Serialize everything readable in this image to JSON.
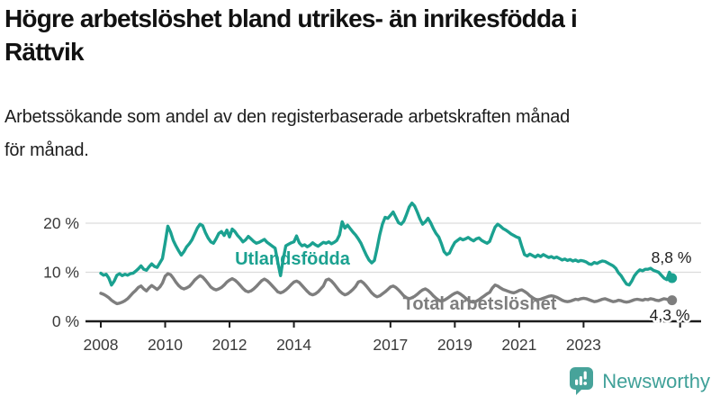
{
  "header": {
    "title_lines": [
      "Högre arbetslöshet bland utrikes- än inrikesfödda i",
      "Rättvik"
    ],
    "subtitle_lines": [
      "Arbetssökande som andel av den registerbaserade arbetskraften månad",
      "för månad."
    ]
  },
  "chart_data": {
    "type": "line",
    "unit": "%",
    "x_start_year": 2008,
    "points_per_year": 12,
    "ylim": [
      0,
      24.5
    ],
    "grid": "horizontal",
    "axis_color": "#1c1c1c",
    "gridline_color": "#dcdcdc",
    "yticks": [
      {
        "value": 0,
        "label": "0 %"
      },
      {
        "value": 10,
        "label": "10 %"
      },
      {
        "value": 20,
        "label": "20 %"
      }
    ],
    "xticks": [
      {
        "value": 2008,
        "label": "2008"
      },
      {
        "value": 2010,
        "label": "2010"
      },
      {
        "value": 2012,
        "label": "2012"
      },
      {
        "value": 2014,
        "label": "2014"
      },
      {
        "value": 2017,
        "label": "2017"
      },
      {
        "value": 2019,
        "label": "2019"
      },
      {
        "value": 2021,
        "label": "2021"
      },
      {
        "value": 2023,
        "label": "2023"
      },
      {
        "value": 2026,
        "label": ""
      }
    ],
    "series": [
      {
        "name": "Utlandsfödda",
        "color": "#1ba190",
        "end_label": "8,8 %",
        "end_value": 8.8,
        "values": [
          9.8,
          9.4,
          9.6,
          8.8,
          7.4,
          8.2,
          9.4,
          9.7,
          9.3,
          9.6,
          9.4,
          9.7,
          9.8,
          10.2,
          10.7,
          11.3,
          10.6,
          10.4,
          11.1,
          11.7,
          11.2,
          11.0,
          11.9,
          12.8,
          16.0,
          19.4,
          18.2,
          16.5,
          15.4,
          14.4,
          13.5,
          14.2,
          15.2,
          15.8,
          16.6,
          17.8,
          19.0,
          19.8,
          19.5,
          18.1,
          17.0,
          16.2,
          15.9,
          16.8,
          17.9,
          18.3,
          17.5,
          18.6,
          17.2,
          18.8,
          18.3,
          17.5,
          16.9,
          16.2,
          16.6,
          17.3,
          16.8,
          16.3,
          15.9,
          16.1,
          16.4,
          16.7,
          16.1,
          15.7,
          15.3,
          14.9,
          12.0,
          9.3,
          12.6,
          15.4,
          15.7,
          16.0,
          16.2,
          17.4,
          16.0,
          15.4,
          15.6,
          15.2,
          15.5,
          16.0,
          15.6,
          15.3,
          15.7,
          16.1,
          15.9,
          16.2,
          15.8,
          16.1,
          16.5,
          17.6,
          20.3,
          19.0,
          19.6,
          18.9,
          18.2,
          17.6,
          16.8,
          15.9,
          14.7,
          13.5,
          12.5,
          11.9,
          12.4,
          14.8,
          17.6,
          19.8,
          21.2,
          21.0,
          21.6,
          22.3,
          21.2,
          20.1,
          19.8,
          20.4,
          21.8,
          23.3,
          24.1,
          23.5,
          22.3,
          20.9,
          19.8,
          20.3,
          21.0,
          20.1,
          18.9,
          17.9,
          17.2,
          15.8,
          14.2,
          13.6,
          13.9,
          15.1,
          16.1,
          16.5,
          16.9,
          16.6,
          16.8,
          17.1,
          16.7,
          16.4,
          16.8,
          17.0,
          16.5,
          16.2,
          15.9,
          16.3,
          17.8,
          19.2,
          19.8,
          19.4,
          18.9,
          18.6,
          18.2,
          17.8,
          17.5,
          17.2,
          17.0,
          15.2,
          13.6,
          13.3,
          13.7,
          13.4,
          13.1,
          13.5,
          13.2,
          13.6,
          13.3,
          13.0,
          13.2,
          12.9,
          13.1,
          12.8,
          12.5,
          12.7,
          12.4,
          12.6,
          12.3,
          12.5,
          12.2,
          12.4,
          12.3,
          12.1,
          11.7,
          11.6,
          12.0,
          11.8,
          12.1,
          12.3,
          12.2,
          11.9,
          11.6,
          11.3,
          10.8,
          9.9,
          9.3,
          8.4,
          7.6,
          7.4,
          8.2,
          9.3,
          10.0,
          10.5,
          10.3,
          10.6,
          10.6,
          10.8,
          10.4,
          10.2,
          10.0,
          9.4,
          8.8,
          8.5,
          10.0,
          8.8
        ]
      },
      {
        "name": "Total arbetslöshet",
        "color": "#7e7e7e",
        "end_label": "4,3 %",
        "end_value": 4.3,
        "values": [
          5.7,
          5.5,
          5.2,
          4.8,
          4.3,
          3.9,
          3.6,
          3.7,
          3.9,
          4.2,
          4.6,
          5.2,
          5.8,
          6.3,
          6.9,
          7.2,
          6.6,
          6.2,
          6.8,
          7.3,
          6.9,
          6.5,
          7.0,
          7.8,
          9.2,
          9.7,
          9.5,
          8.8,
          8.0,
          7.3,
          6.8,
          6.6,
          6.8,
          7.1,
          7.7,
          8.4,
          8.9,
          9.3,
          9.0,
          8.4,
          7.7,
          7.0,
          6.6,
          6.4,
          6.6,
          6.9,
          7.4,
          8.0,
          8.4,
          8.7,
          8.4,
          7.9,
          7.3,
          6.7,
          6.2,
          6.0,
          6.2,
          6.6,
          7.1,
          7.7,
          8.3,
          8.6,
          8.3,
          7.8,
          7.2,
          6.6,
          6.0,
          5.8,
          6.0,
          6.4,
          6.9,
          7.5,
          8.0,
          8.2,
          7.9,
          7.3,
          6.7,
          6.1,
          5.6,
          5.4,
          5.6,
          6.0,
          6.6,
          7.2,
          8.4,
          8.6,
          8.2,
          7.6,
          6.9,
          6.2,
          5.7,
          5.4,
          5.6,
          6.0,
          6.5,
          7.1,
          8.0,
          8.2,
          7.8,
          7.2,
          6.5,
          5.8,
          5.3,
          5.0,
          5.2,
          5.6,
          6.0,
          6.5,
          7.0,
          7.2,
          6.9,
          6.4,
          5.8,
          5.2,
          4.8,
          4.6,
          4.8,
          5.1,
          5.5,
          6.0,
          6.4,
          6.6,
          6.3,
          5.8,
          5.2,
          4.7,
          4.3,
          4.1,
          4.3,
          4.6,
          5.0,
          5.4,
          5.7,
          5.9,
          5.6,
          5.2,
          4.7,
          4.3,
          4.0,
          3.9,
          4.1,
          4.4,
          4.8,
          5.2,
          5.6,
          5.9,
          6.8,
          7.4,
          7.2,
          6.8,
          6.5,
          6.3,
          6.1,
          5.9,
          5.8,
          6.0,
          6.3,
          6.4,
          6.1,
          5.7,
          5.2,
          4.8,
          4.5,
          4.4,
          4.5,
          4.7,
          4.9,
          5.1,
          5.2,
          5.1,
          4.9,
          4.6,
          4.3,
          4.1,
          4.0,
          4.1,
          4.3,
          4.5,
          4.4,
          4.6,
          4.7,
          4.6,
          4.4,
          4.2,
          4.0,
          4.1,
          4.3,
          4.5,
          4.6,
          4.4,
          4.2,
          4.0,
          4.1,
          4.3,
          4.2,
          4.0,
          3.9,
          4.0,
          4.2,
          4.4,
          4.5,
          4.4,
          4.3,
          4.5,
          4.4,
          4.6,
          4.5,
          4.3,
          4.2,
          4.4,
          4.6,
          4.5,
          4.2,
          4.3
        ]
      }
    ]
  },
  "branding": {
    "logo_text": "Newsworthy",
    "logo_color": "#47a39a"
  }
}
